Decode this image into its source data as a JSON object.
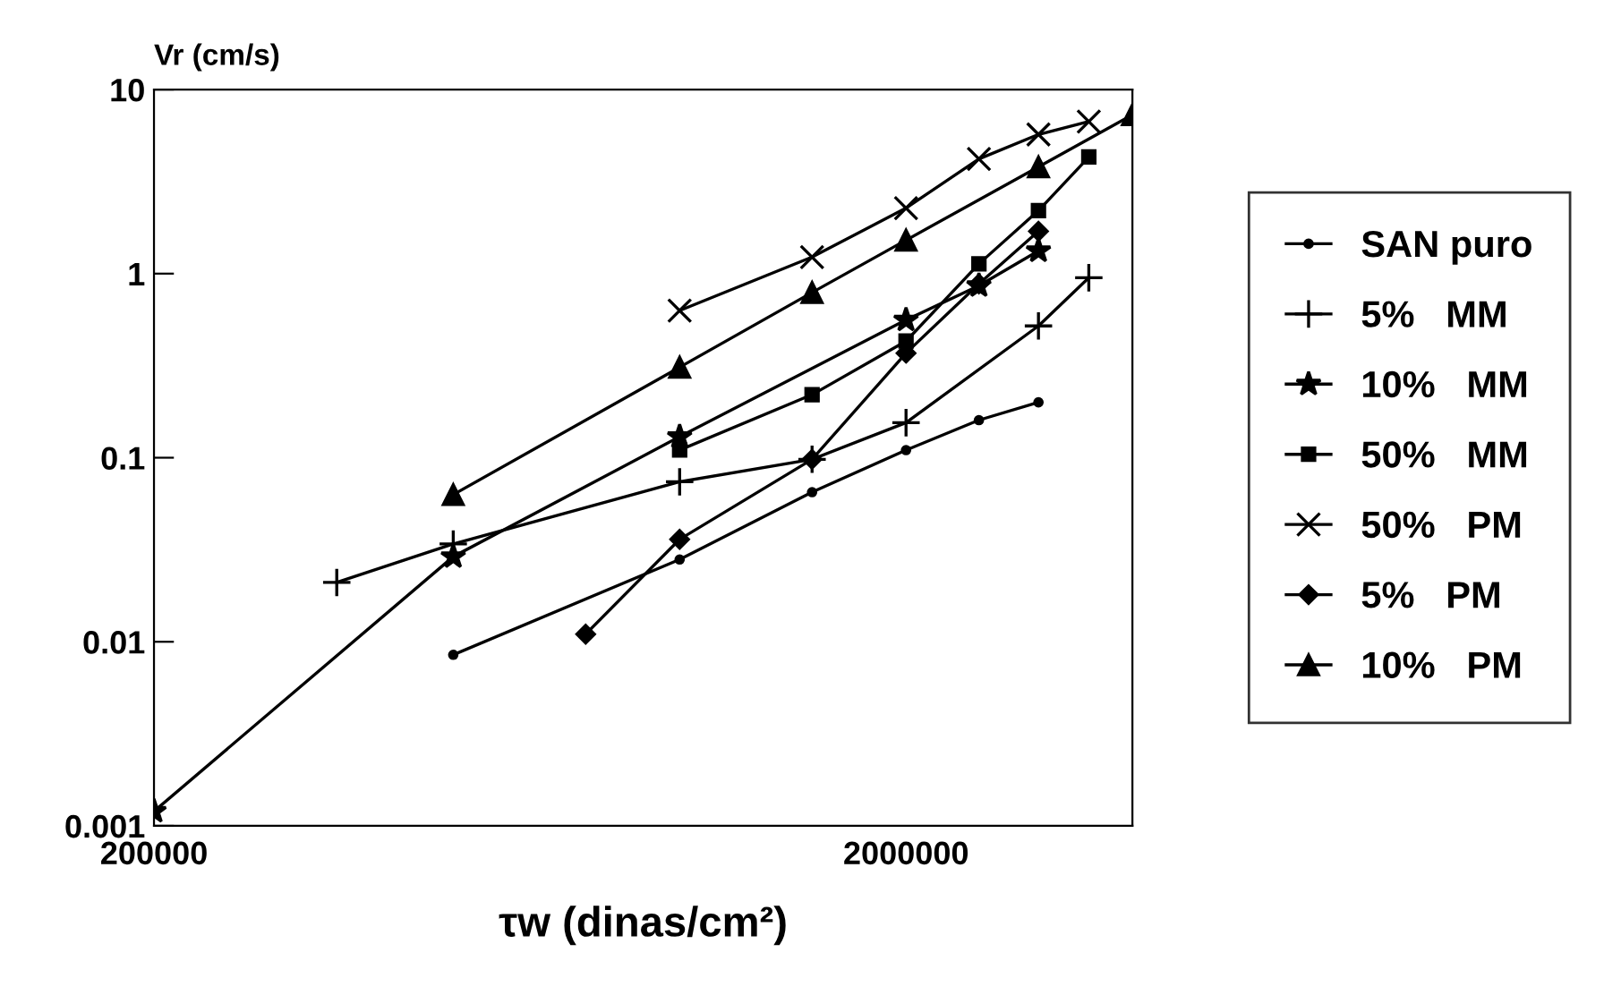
{
  "chart_data": {
    "type": "line",
    "xlabel": "τw (dinas/cm²)",
    "ylabel": "Vr (cm/s)",
    "log": "xy",
    "grid": false,
    "legend": "right",
    "xlim": [
      200000,
      4000000
    ],
    "xticks": [
      200000,
      2000000
    ],
    "ylim": [
      0.001,
      10
    ],
    "yticks": [
      0.001,
      0.01,
      0.1,
      1,
      10
    ],
    "series": [
      {
        "name": "SAN puro",
        "color": "#000000",
        "marker": "circle",
        "x": [
          500000,
          1000000,
          1500000,
          2000000,
          2500000,
          3000000
        ],
        "values": [
          0.0085,
          0.028,
          0.065,
          0.11,
          0.16,
          0.2
        ]
      },
      {
        "name": "5%   MM",
        "color": "#000000",
        "marker": "plus",
        "x": [
          350000,
          500000,
          1000000,
          1500000,
          2000000,
          3000000,
          3500000
        ],
        "values": [
          0.021,
          0.034,
          0.074,
          0.098,
          0.155,
          0.52,
          0.95
        ]
      },
      {
        "name": "10%   MM",
        "color": "#000000",
        "marker": "star",
        "x": [
          200000,
          500000,
          1000000,
          2000000,
          2500000,
          3000000
        ],
        "values": [
          0.0012,
          0.029,
          0.13,
          0.56,
          0.86,
          1.33
        ]
      },
      {
        "name": "50%   MM",
        "color": "#000000",
        "marker": "square",
        "x": [
          1000000,
          1500000,
          2000000,
          2500000,
          3000000,
          3500000
        ],
        "values": [
          0.11,
          0.22,
          0.43,
          1.13,
          2.2,
          4.3
        ]
      },
      {
        "name": "50%   PM",
        "color": "#000000",
        "marker": "x",
        "x": [
          1000000,
          1500000,
          2000000,
          2500000,
          3000000,
          3500000
        ],
        "values": [
          0.63,
          1.23,
          2.27,
          4.2,
          5.7,
          6.7
        ]
      },
      {
        "name": "5%   PM",
        "color": "#000000",
        "marker": "diamond",
        "x": [
          750000,
          1000000,
          1500000,
          2000000,
          2500000,
          3000000
        ],
        "values": [
          0.011,
          0.036,
          0.098,
          0.37,
          0.88,
          1.7
        ]
      },
      {
        "name": "10%   PM",
        "color": "#000000",
        "marker": "triangle",
        "x": [
          500000,
          1000000,
          1500000,
          2000000,
          3000000,
          4000000
        ],
        "values": [
          0.063,
          0.31,
          0.79,
          1.52,
          3.8,
          7.3
        ]
      }
    ]
  }
}
